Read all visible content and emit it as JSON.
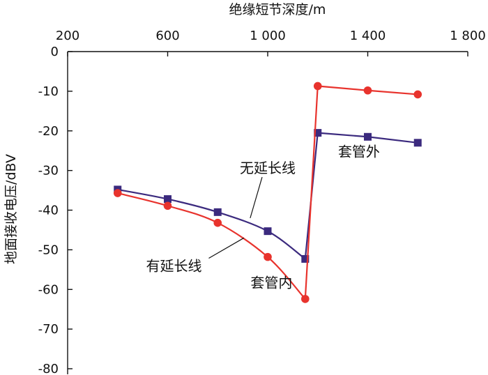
{
  "chart_data": {
    "type": "line",
    "title": "",
    "xlabel": "绝缘短节深度/m",
    "ylabel": "地面接收电压/dBV",
    "x_axis_position": "top",
    "xlim": [
      200,
      1800
    ],
    "ylim": [
      -80,
      0
    ],
    "x_ticks": [
      200,
      600,
      1000,
      1400,
      1800
    ],
    "x_tick_labels": [
      "200",
      "600",
      "1 000",
      "1 400",
      "1 800"
    ],
    "y_ticks": [
      0,
      -10,
      -20,
      -30,
      -40,
      -50,
      -60,
      -70,
      -80
    ],
    "y_tick_labels": [
      "0",
      "-10",
      "-20",
      "-30",
      "-40",
      "-50",
      "-60",
      "-70",
      "-80"
    ],
    "grid": false,
    "legend": "none",
    "series": [
      {
        "label": "无延长线",
        "color": "#3b2a7e",
        "marker": "square",
        "fit_points": [
          {
            "x": 400,
            "y": -34.8
          },
          {
            "x": 600,
            "y": -37.2
          },
          {
            "x": 800,
            "y": -40.5
          },
          {
            "x": 1000,
            "y": -45.3
          },
          {
            "x": 1150,
            "y": -52.3
          }
        ],
        "step_points": [
          {
            "x": 1150,
            "y": -52.3
          },
          {
            "x": 1200,
            "y": -20.5
          },
          {
            "x": 1400,
            "y": -21.5
          },
          {
            "x": 1600,
            "y": -23.0
          }
        ]
      },
      {
        "label": "有延长线",
        "color": "#e8332d",
        "marker": "circle",
        "fit_points": [
          {
            "x": 400,
            "y": -35.7
          },
          {
            "x": 600,
            "y": -38.9
          },
          {
            "x": 800,
            "y": -43.2
          },
          {
            "x": 1000,
            "y": -51.8
          },
          {
            "x": 1150,
            "y": -62.4
          }
        ],
        "step_points": [
          {
            "x": 1150,
            "y": -62.4
          },
          {
            "x": 1200,
            "y": -8.7
          },
          {
            "x": 1400,
            "y": -9.8
          },
          {
            "x": 1600,
            "y": -10.8
          }
        ]
      }
    ],
    "annotations": [
      {
        "text": "无延长线",
        "x": 1000,
        "y": -30.6,
        "pointer_to": {
          "x": 930,
          "y": -42.0
        }
      },
      {
        "text": "有延长线",
        "x": 625,
        "y": -55.3,
        "pointer_to": {
          "x": 905,
          "y": -47.0
        }
      },
      {
        "text": "套管外",
        "x": 1365,
        "y": -26.5
      },
      {
        "text": "套管内",
        "x": 1015,
        "y": -59.5
      }
    ]
  }
}
